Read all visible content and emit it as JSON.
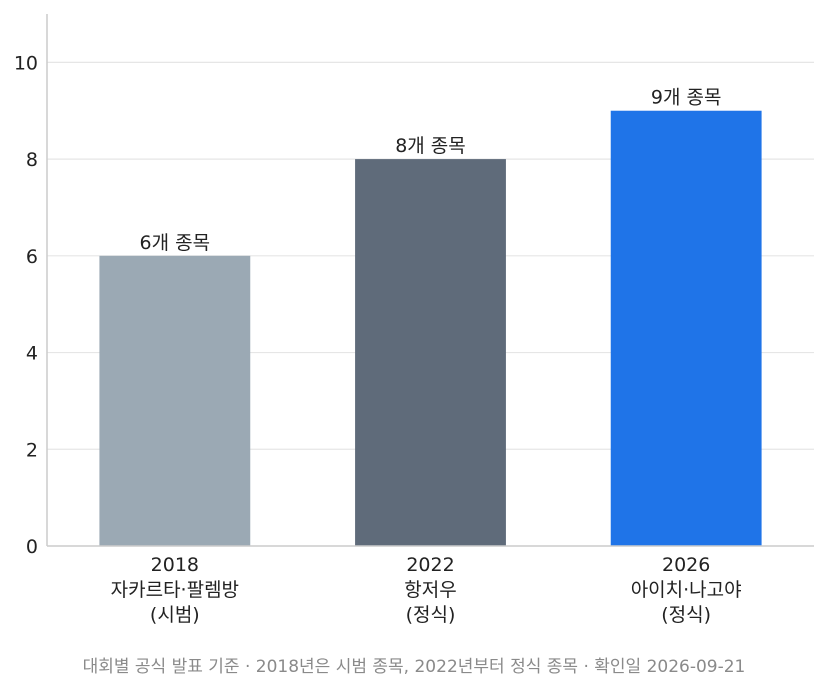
{
  "chart_data": {
    "type": "bar",
    "categories": [
      [
        "2018",
        "자카르타·팔렘방",
        "(시범)"
      ],
      [
        "2022",
        "항저우",
        "(정식)"
      ],
      [
        "2026",
        "아이치·나고야",
        "(정식)"
      ]
    ],
    "values": [
      6,
      8,
      9
    ],
    "data_labels": [
      "6개 종목",
      "8개 종목",
      "9개 종목"
    ],
    "bar_colors": [
      "#9ba9b4",
      "#5f6b7a",
      "#1f74e8"
    ],
    "ylim": [
      0,
      11
    ],
    "yticks": [
      0,
      2,
      4,
      6,
      8,
      10
    ],
    "grid": true,
    "legend": "none",
    "title": "",
    "xlabel": "",
    "ylabel": ""
  },
  "footnote": "대회별 공식 발표 기준 · 2018년은 시범 종목, 2022년부터 정식 종목 · 확인일 2026-09-21"
}
